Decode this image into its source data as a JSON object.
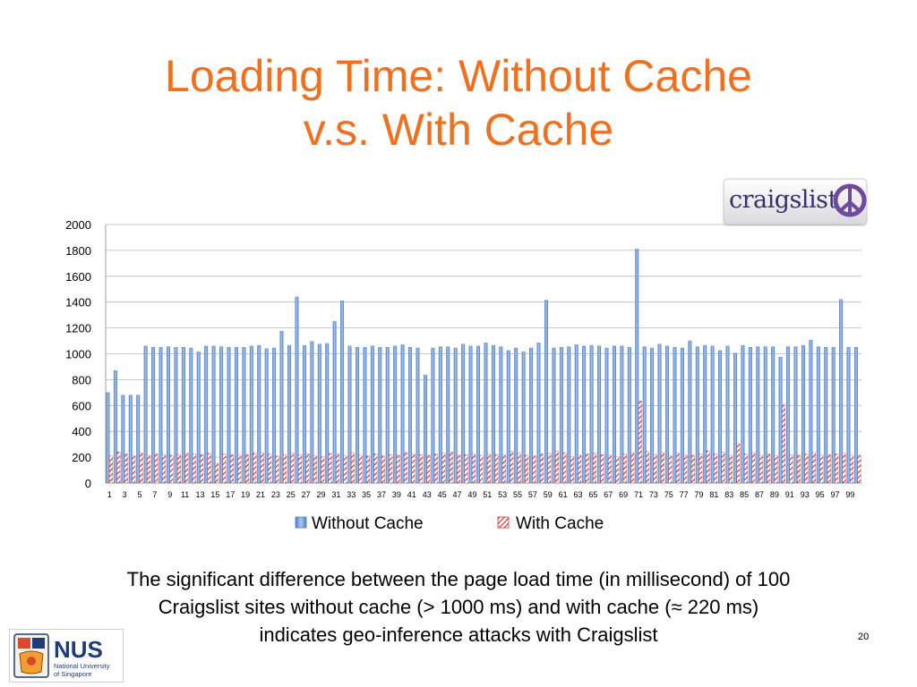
{
  "slide": {
    "title_line1": "Loading Time: Without Cache",
    "title_line2": "v.s. With Cache",
    "caption_line1": "The significant difference between the page load time (in millisecond) of 100",
    "caption_line2": "Craigslist sites without cache (> 1000 ms) and with cache (≈ 220 ms)",
    "caption_line3": "indicates geo-inference attacks with Craigslist",
    "page_number": "20",
    "logo_right_text": "craigslist",
    "logo_left_text": "NUS",
    "logo_left_sub1": "National University",
    "logo_left_sub2": "of Singapore"
  },
  "chart_data": {
    "type": "bar",
    "title": "",
    "xlabel": "",
    "ylabel": "",
    "ylim": [
      0,
      2000
    ],
    "yticks": [
      0,
      200,
      400,
      600,
      800,
      1000,
      1200,
      1400,
      1600,
      1800,
      2000
    ],
    "grid": true,
    "legend": "bottom",
    "x": [
      1,
      2,
      3,
      4,
      5,
      6,
      7,
      8,
      9,
      10,
      11,
      12,
      13,
      14,
      15,
      16,
      17,
      18,
      19,
      20,
      21,
      22,
      23,
      24,
      25,
      26,
      27,
      28,
      29,
      30,
      31,
      32,
      33,
      34,
      35,
      36,
      37,
      38,
      39,
      40,
      41,
      42,
      43,
      44,
      45,
      46,
      47,
      48,
      49,
      50,
      51,
      52,
      53,
      54,
      55,
      56,
      57,
      58,
      59,
      60,
      61,
      62,
      63,
      64,
      65,
      66,
      67,
      68,
      69,
      70,
      71,
      72,
      73,
      74,
      75,
      76,
      77,
      78,
      79,
      80,
      81,
      82,
      83,
      84,
      85,
      86,
      87,
      88,
      89,
      90,
      91,
      92,
      93,
      94,
      95,
      96,
      97,
      98,
      99,
      100
    ],
    "x_tick_labels": [
      "1",
      "3",
      "5",
      "7",
      "9",
      "11",
      "13",
      "15",
      "17",
      "19",
      "21",
      "23",
      "25",
      "27",
      "29",
      "31",
      "33",
      "35",
      "37",
      "39",
      "41",
      "43",
      "45",
      "47",
      "49",
      "51",
      "53",
      "55",
      "57",
      "59",
      "61",
      "63",
      "65",
      "67",
      "69",
      "71",
      "73",
      "75",
      "77",
      "79",
      "81",
      "83",
      "85",
      "87",
      "89",
      "91",
      "93",
      "95",
      "97",
      "99"
    ],
    "series": [
      {
        "name": "Without Cache",
        "color": "#5b8fd6",
        "values": [
          700,
          870,
          680,
          680,
          680,
          1060,
          1050,
          1050,
          1055,
          1050,
          1050,
          1045,
          1015,
          1060,
          1060,
          1055,
          1050,
          1050,
          1050,
          1060,
          1065,
          1040,
          1045,
          1175,
          1065,
          1440,
          1065,
          1095,
          1075,
          1080,
          1250,
          1410,
          1060,
          1050,
          1050,
          1060,
          1050,
          1050,
          1060,
          1070,
          1050,
          1045,
          835,
          1045,
          1055,
          1055,
          1045,
          1075,
          1060,
          1060,
          1085,
          1065,
          1055,
          1025,
          1045,
          1015,
          1045,
          1085,
          1415,
          1045,
          1050,
          1055,
          1070,
          1060,
          1065,
          1060,
          1045,
          1060,
          1060,
          1050,
          1810,
          1055,
          1045,
          1075,
          1060,
          1050,
          1045,
          1100,
          1055,
          1065,
          1060,
          1025,
          1060,
          1005,
          1065,
          1050,
          1055,
          1055,
          1055,
          975,
          1055,
          1055,
          1065,
          1105,
          1055,
          1050,
          1050,
          1420,
          1050,
          1050
        ]
      },
      {
        "name": "With Cache",
        "color": "#d62828",
        "values": [
          210,
          240,
          225,
          210,
          230,
          215,
          225,
          220,
          215,
          220,
          230,
          225,
          220,
          230,
          150,
          225,
          220,
          215,
          220,
          230,
          235,
          225,
          210,
          220,
          230,
          220,
          225,
          210,
          205,
          230,
          225,
          210,
          235,
          215,
          210,
          225,
          210,
          220,
          215,
          235,
          225,
          220,
          215,
          225,
          230,
          240,
          215,
          220,
          225,
          215,
          225,
          220,
          215,
          245,
          230,
          215,
          210,
          225,
          230,
          245,
          235,
          205,
          215,
          225,
          230,
          220,
          215,
          205,
          225,
          230,
          635,
          245,
          220,
          235,
          210,
          230,
          220,
          215,
          225,
          250,
          225,
          240,
          215,
          305,
          225,
          230,
          215,
          225,
          215,
          605,
          220,
          215,
          225,
          235,
          215,
          220,
          225,
          230,
          215,
          215
        ]
      }
    ]
  }
}
